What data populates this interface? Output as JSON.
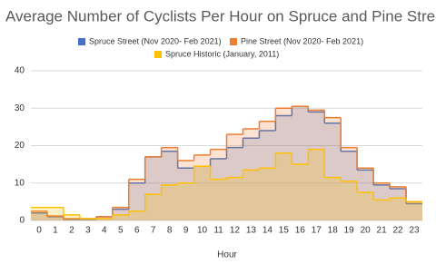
{
  "chart_data": {
    "type": "step-area",
    "title": "Average Number of Cyclists Per Hour on Spruce and Pine Streets",
    "x_label": "Hour",
    "categories": [
      "0",
      "1",
      "2",
      "3",
      "4",
      "5",
      "6",
      "7",
      "8",
      "9",
      "10",
      "11",
      "12",
      "13",
      "14",
      "15",
      "16",
      "17",
      "18",
      "19",
      "20",
      "21",
      "22",
      "23"
    ],
    "series": [
      {
        "name": "Spruce Street (Nov 2020- Feb 2021)",
        "color": "#4472c4",
        "values": [
          2,
          1,
          0.3,
          0.3,
          1,
          3,
          10,
          17,
          18.5,
          14,
          14.5,
          16.5,
          19.5,
          22,
          24,
          28,
          30.5,
          29,
          26,
          18.5,
          13.5,
          9.5,
          8.5,
          4.5
        ]
      },
      {
        "name": "Pine Street (Nov 2020- Feb 2021)",
        "color": "#ed7d31",
        "values": [
          2.5,
          1.2,
          0.5,
          0.5,
          1,
          3.5,
          11,
          17,
          19.5,
          16,
          17.5,
          19,
          23,
          24.5,
          26.5,
          30,
          30.5,
          29.5,
          27.5,
          19.5,
          14,
          10,
          9,
          5
        ]
      },
      {
        "name": "Spruce Historic (January, 2011)",
        "color": "#ffc000",
        "values": [
          3.5,
          3.5,
          1.5,
          0.5,
          0.5,
          1.5,
          2.5,
          7,
          9.5,
          10,
          14.5,
          11,
          11.5,
          13.5,
          14,
          18,
          15,
          19,
          11.5,
          10.5,
          7.5,
          5.5,
          6,
          5
        ]
      }
    ],
    "ylim": [
      0,
      40
    ],
    "yticks": [
      0,
      10,
      20,
      30,
      40
    ],
    "grid": true
  }
}
